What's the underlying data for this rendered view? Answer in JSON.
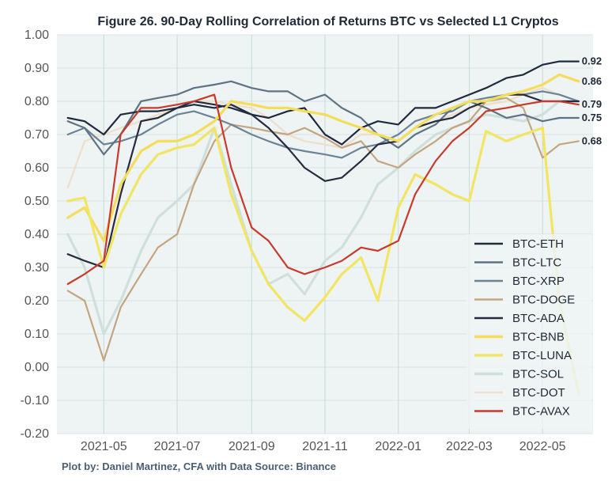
{
  "chart_data": {
    "type": "line",
    "title": "Figure 26. 90-Day Rolling Correlation of Returns BTC vs Selected L1 Cryptos",
    "footnote": "Plot by: Daniel Martinez, CFA with Data Source: Binance",
    "xlabel": "",
    "ylabel": "",
    "ylim": [
      -0.2,
      1.0
    ],
    "yticks": [
      "1.00",
      "0.90",
      "0.80",
      "0.70",
      "0.60",
      "0.50",
      "0.40",
      "0.30",
      "0.20",
      "0.10",
      "0.00",
      "-0.10",
      "-0.20"
    ],
    "xticks": [
      "2021-05",
      "2021-07",
      "2021-09",
      "2021-11",
      "2022-01",
      "2022-03",
      "2022-05"
    ],
    "grid": true,
    "legend_position": "lower-right",
    "x": [
      "2021-04-01",
      "2021-04-15",
      "2021-05-01",
      "2021-05-15",
      "2021-06-01",
      "2021-06-15",
      "2021-07-01",
      "2021-07-15",
      "2021-08-01",
      "2021-08-15",
      "2021-09-01",
      "2021-09-15",
      "2021-10-01",
      "2021-10-15",
      "2021-11-01",
      "2021-11-15",
      "2021-12-01",
      "2021-12-15",
      "2022-01-01",
      "2022-01-15",
      "2022-02-01",
      "2022-02-15",
      "2022-03-01",
      "2022-03-15",
      "2022-04-01",
      "2022-04-15",
      "2022-05-01",
      "2022-05-15",
      "2022-05-31"
    ],
    "series": [
      {
        "name": "BTC-ETH",
        "color": "#1f2a3d",
        "end_label": "0.92",
        "values": [
          0.75,
          0.74,
          0.7,
          0.76,
          0.77,
          0.77,
          0.78,
          0.79,
          0.78,
          0.79,
          0.76,
          0.75,
          0.77,
          0.78,
          0.7,
          0.67,
          0.72,
          0.74,
          0.73,
          0.78,
          0.78,
          0.8,
          0.82,
          0.84,
          0.87,
          0.88,
          0.91,
          0.92,
          0.92
        ]
      },
      {
        "name": "BTC-LTC",
        "color": "#5e7384",
        "end_label": "0.75",
        "values": [
          0.74,
          0.72,
          0.64,
          0.7,
          0.8,
          0.81,
          0.82,
          0.84,
          0.85,
          0.86,
          0.84,
          0.83,
          0.83,
          0.8,
          0.82,
          0.78,
          0.75,
          0.7,
          0.66,
          0.7,
          0.73,
          0.78,
          0.8,
          0.78,
          0.75,
          0.76,
          0.74,
          0.75,
          0.75
        ]
      },
      {
        "name": "BTC-XRP",
        "color": "#6b8394",
        "end_label": "",
        "values": [
          0.7,
          0.72,
          0.67,
          0.68,
          0.7,
          0.73,
          0.76,
          0.77,
          0.75,
          0.73,
          0.7,
          0.68,
          0.66,
          0.65,
          0.64,
          0.63,
          0.66,
          0.67,
          0.7,
          0.74,
          0.76,
          0.77,
          0.8,
          0.81,
          0.82,
          0.82,
          0.83,
          0.82,
          0.8
        ]
      },
      {
        "name": "BTC-DOGE",
        "color": "#c4a57f",
        "end_label": "0.68",
        "values": [
          0.23,
          0.2,
          0.02,
          0.18,
          0.28,
          0.36,
          0.4,
          0.55,
          0.68,
          0.73,
          0.72,
          0.71,
          0.7,
          0.72,
          0.69,
          0.66,
          0.68,
          0.62,
          0.6,
          0.64,
          0.68,
          0.72,
          0.74,
          0.8,
          0.81,
          0.78,
          0.63,
          0.67,
          0.68
        ]
      },
      {
        "name": "BTC-ADA",
        "color": "#262b3f",
        "end_label": "",
        "values": [
          0.34,
          0.32,
          0.3,
          0.52,
          0.74,
          0.75,
          0.78,
          0.8,
          0.79,
          0.78,
          0.76,
          0.72,
          0.66,
          0.6,
          0.56,
          0.57,
          0.62,
          0.67,
          0.68,
          0.72,
          0.74,
          0.75,
          0.78,
          0.8,
          0.82,
          0.82,
          0.8,
          0.8,
          0.8
        ]
      },
      {
        "name": "BTC-BNB",
        "color": "#f4dd5a",
        "end_label": "0.86",
        "values": [
          0.45,
          0.48,
          0.38,
          0.55,
          0.65,
          0.68,
          0.68,
          0.7,
          0.74,
          0.8,
          0.79,
          0.78,
          0.78,
          0.77,
          0.76,
          0.74,
          0.72,
          0.7,
          0.68,
          0.72,
          0.76,
          0.78,
          0.8,
          0.8,
          0.82,
          0.83,
          0.85,
          0.88,
          0.86
        ]
      },
      {
        "name": "BTC-LUNA",
        "color": "#f2e563",
        "end_label": "",
        "values": [
          0.5,
          0.51,
          0.3,
          0.46,
          0.58,
          0.64,
          0.66,
          0.67,
          0.72,
          0.52,
          0.35,
          0.25,
          0.18,
          0.14,
          0.21,
          0.28,
          0.33,
          0.2,
          0.48,
          0.58,
          0.55,
          0.52,
          0.5,
          0.71,
          0.68,
          0.7,
          0.72,
          0.2,
          -0.08
        ]
      },
      {
        "name": "BTC-SOL",
        "color": "#cfe0dc",
        "end_label": "",
        "values": [
          0.4,
          0.3,
          0.1,
          0.2,
          0.35,
          0.45,
          0.5,
          0.55,
          0.72,
          0.55,
          0.35,
          0.25,
          0.28,
          0.22,
          0.32,
          0.36,
          0.45,
          0.55,
          0.6,
          0.65,
          0.7,
          0.72,
          0.74,
          0.76,
          0.75,
          0.74,
          0.76,
          0.8,
          0.8
        ]
      },
      {
        "name": "BTC-DOT",
        "color": "#efdec8",
        "end_label": "",
        "values": [
          0.54,
          0.68,
          0.7,
          0.72,
          0.74,
          0.76,
          0.78,
          0.8,
          0.8,
          0.79,
          0.78,
          0.75,
          0.7,
          0.68,
          0.67,
          0.66,
          0.7,
          0.7,
          0.68,
          0.72,
          0.74,
          0.76,
          0.78,
          0.79,
          0.8,
          0.82,
          0.84,
          0.82,
          0.8
        ]
      },
      {
        "name": "BTC-AVAX",
        "color": "#c83a2b",
        "end_label": "0.79",
        "values": [
          0.25,
          0.28,
          0.32,
          0.7,
          0.78,
          0.78,
          0.79,
          0.8,
          0.82,
          0.6,
          0.42,
          0.38,
          0.3,
          0.28,
          0.3,
          0.32,
          0.36,
          0.35,
          0.38,
          0.52,
          0.62,
          0.68,
          0.72,
          0.77,
          0.78,
          0.79,
          0.8,
          0.8,
          0.79
        ]
      }
    ]
  }
}
